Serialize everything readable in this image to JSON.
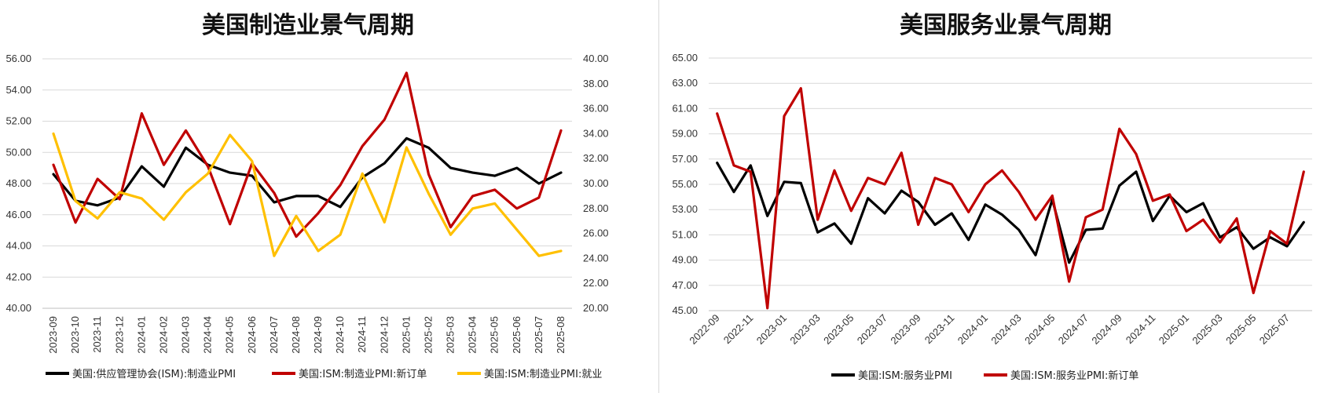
{
  "colors": {
    "black": "#000000",
    "red": "#c00000",
    "yellow": "#ffc000",
    "grid": "#d9d9d9"
  },
  "chart_data": [
    {
      "type": "line",
      "title": "美国制造业景气周期",
      "categories": [
        "2023-09",
        "2023-10",
        "2023-11",
        "2023-12",
        "2024-01",
        "2024-02",
        "2024-03",
        "2024-04",
        "2024-05",
        "2024-06",
        "2024-07",
        "2024-08",
        "2024-09",
        "2024-10",
        "2024-11",
        "2024-12",
        "2025-01",
        "2025-02",
        "2025-03",
        "2025-04",
        "2025-05",
        "2025-06",
        "2025-07",
        "2025-08"
      ],
      "y_left": {
        "min": 40,
        "max": 56,
        "step": 2,
        "ticks": [
          "40.00",
          "42.00",
          "44.00",
          "46.00",
          "48.00",
          "50.00",
          "52.00",
          "54.00",
          "56.00"
        ]
      },
      "y_right": {
        "min": 20,
        "max": 40,
        "step": 2,
        "ticks": [
          "20.00",
          "22.00",
          "24.00",
          "26.00",
          "28.00",
          "30.00",
          "32.00",
          "34.00",
          "36.00",
          "38.00",
          "40.00"
        ]
      },
      "grid": true,
      "legend_position": "bottom",
      "series": [
        {
          "name": "美国:供应管理协会(ISM):制造业PMI",
          "axis": "left",
          "color": "#000000",
          "values": [
            48.6,
            46.9,
            46.6,
            47.1,
            49.1,
            47.8,
            50.3,
            49.2,
            48.7,
            48.5,
            46.8,
            47.2,
            47.2,
            46.5,
            48.4,
            49.3,
            50.9,
            50.3,
            49.0,
            48.7,
            48.5,
            49.0,
            48.0,
            48.7
          ]
        },
        {
          "name": "美国:ISM:制造业PMI:新订单",
          "axis": "left",
          "color": "#c00000",
          "values": [
            49.2,
            45.5,
            48.3,
            47.0,
            52.5,
            49.2,
            51.4,
            49.1,
            45.4,
            49.3,
            47.4,
            44.6,
            46.1,
            47.9,
            50.4,
            52.1,
            55.1,
            48.6,
            45.2,
            47.2,
            47.6,
            46.4,
            47.1,
            51.4
          ]
        },
        {
          "name": "美国:ISM:制造业PMI:就业",
          "axis": "right",
          "color": "#ffc000",
          "values": [
            34.0,
            28.6,
            27.2,
            29.3,
            28.8,
            27.1,
            29.3,
            30.8,
            33.9,
            31.8,
            24.2,
            27.4,
            24.6,
            25.9,
            30.8,
            26.9,
            32.9,
            29.2,
            25.9,
            28.0,
            28.4,
            26.3,
            24.2,
            24.6
          ]
        }
      ]
    },
    {
      "type": "line",
      "title": "美国服务业景气周期",
      "categories": [
        "2022-09",
        "2022-10",
        "2022-11",
        "2022-12",
        "2023-01",
        "2023-02",
        "2023-03",
        "2023-04",
        "2023-05",
        "2023-06",
        "2023-07",
        "2023-08",
        "2023-09",
        "2023-10",
        "2023-11",
        "2023-12",
        "2024-01",
        "2024-02",
        "2024-03",
        "2024-04",
        "2024-05",
        "2024-06",
        "2024-07",
        "2024-08",
        "2024-09",
        "2024-10",
        "2024-11",
        "2024-12",
        "2025-01",
        "2025-02",
        "2025-03",
        "2025-04",
        "2025-05",
        "2025-06",
        "2025-07",
        "2025-08"
      ],
      "x_tick_labels": [
        "2022-09",
        "2022-11",
        "2023-01",
        "2023-03",
        "2023-05",
        "2023-07",
        "2023-09",
        "2023-11",
        "2024-01",
        "2024-03",
        "2024-05",
        "2024-07",
        "2024-09",
        "2024-11",
        "2025-01",
        "2025-03",
        "2025-05",
        "2025-07"
      ],
      "y_left": {
        "min": 45,
        "max": 65,
        "step": 2,
        "ticks": [
          "45.00",
          "47.00",
          "49.00",
          "51.00",
          "53.00",
          "55.00",
          "57.00",
          "59.00",
          "61.00",
          "63.00",
          "65.00"
        ]
      },
      "grid": true,
      "legend_position": "bottom",
      "series": [
        {
          "name": "美国:ISM:服务业PMI",
          "axis": "left",
          "color": "#000000",
          "values": [
            56.7,
            54.4,
            56.5,
            52.5,
            55.2,
            55.1,
            51.2,
            51.9,
            50.3,
            53.9,
            52.7,
            54.5,
            53.6,
            51.8,
            52.7,
            50.6,
            53.4,
            52.6,
            51.4,
            49.4,
            53.8,
            48.8,
            51.4,
            51.5,
            54.9,
            56.0,
            52.1,
            54.1,
            52.8,
            53.5,
            50.8,
            51.6,
            49.9,
            50.8,
            50.1,
            52.0
          ]
        },
        {
          "name": "美国:ISM:服务业PMI:新订单",
          "axis": "left",
          "color": "#c00000",
          "values": [
            60.6,
            56.5,
            56.0,
            45.2,
            60.4,
            62.6,
            52.2,
            56.1,
            52.9,
            55.5,
            55.0,
            57.5,
            51.8,
            55.5,
            55.0,
            52.8,
            55.0,
            56.1,
            54.4,
            52.2,
            54.1,
            47.3,
            52.4,
            53.0,
            59.4,
            57.4,
            53.7,
            54.2,
            51.3,
            52.2,
            50.4,
            52.3,
            46.4,
            51.3,
            50.3,
            56.0
          ]
        }
      ]
    }
  ]
}
